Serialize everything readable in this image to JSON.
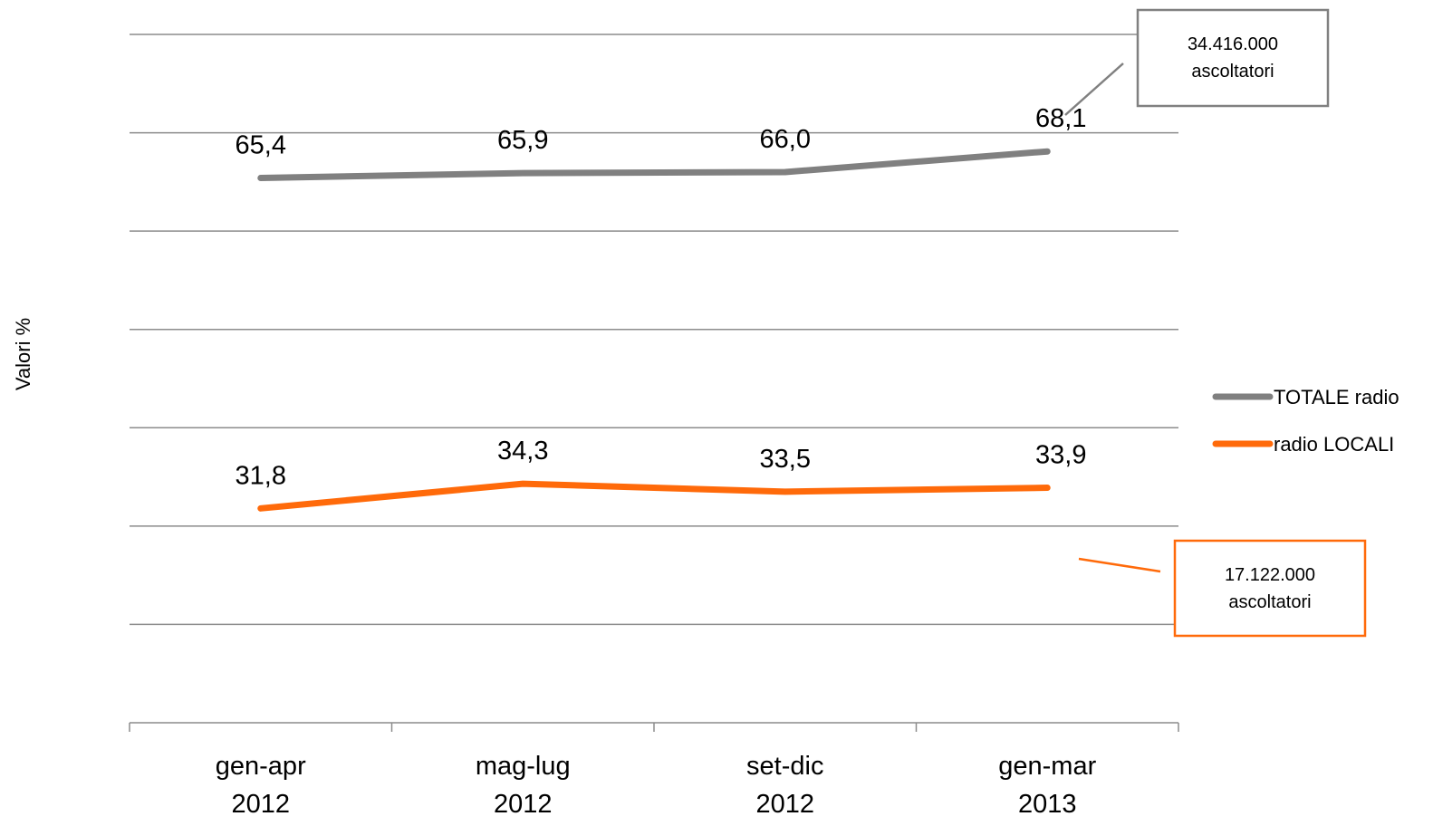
{
  "chart_data": {
    "type": "line",
    "title": "",
    "xlabel": "",
    "ylabel": "Valori %",
    "categories": [
      [
        "gen-apr",
        "2012"
      ],
      [
        "mag-lug",
        "2012"
      ],
      [
        "set-dic",
        "2012"
      ],
      [
        "gen-mar",
        "2013"
      ]
    ],
    "series": [
      {
        "name": "TOTALE radio",
        "color": "#808080",
        "values": [
          65.4,
          65.9,
          66.0,
          68.1
        ],
        "value_labels": [
          "65,4",
          "65,9",
          "66,0",
          "68,1"
        ]
      },
      {
        "name": "radio LOCALI",
        "color": "#ff6a0a",
        "values": [
          31.8,
          34.3,
          33.5,
          33.9
        ],
        "value_labels": [
          "31,8",
          "34,3",
          "33,5",
          "33,9"
        ]
      }
    ],
    "ylim": [
      10,
      80
    ],
    "y_gridlines": [
      20,
      30,
      40,
      50,
      60,
      70,
      80
    ],
    "y_tick_labels_shown": false,
    "grid": true,
    "legend_position": "right",
    "annotations": [
      {
        "series": "TOTALE radio",
        "lines": [
          "34.416.000",
          "ascoltatori"
        ],
        "border_color": "#808080"
      },
      {
        "series": "radio LOCALI",
        "lines": [
          "17.122.000",
          "ascoltatori"
        ],
        "border_color": "#ff6a0a"
      }
    ]
  }
}
